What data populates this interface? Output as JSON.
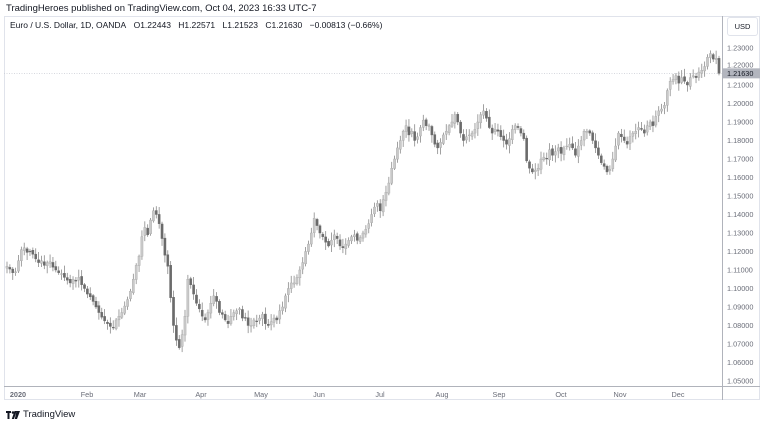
{
  "header": {
    "publish_line": "TradingHeroes published on TradingView.com, Oct 04, 2023 16:33 UTC-7"
  },
  "legend": {
    "symbol": "Euro / U.S. Dollar, 1D, OANDA",
    "open": "O1.22443",
    "high": "H1.22571",
    "low": "L1.21523",
    "close": "C1.21630",
    "change": "−0.00813 (−0.66%)"
  },
  "price_scale": {
    "currency_button": "USD",
    "last_price_label": "1.21630"
  },
  "footer": {
    "brand": "TradingView",
    "logo_icon": "tradingview-logo-icon"
  },
  "colors": {
    "up_candle_fill": "#c9c9c9",
    "up_candle_border": "#a8a8a8",
    "down_candle_fill": "#6b6b6b",
    "wick": "#8a8a8a",
    "last_price_badge": "#b2b5be",
    "grid_border": "#e0e3eb",
    "axis_text": "#6a6d78"
  },
  "chart_data": {
    "type": "candlestick",
    "title": "Euro / U.S. Dollar, 1D, OANDA",
    "xlabel": "",
    "ylabel": "USD",
    "ylim": [
      1.05,
      1.235
    ],
    "grid": false,
    "legend_position": "top-left",
    "y_ticks": [
      "1.23000",
      "1.22000",
      "1.21000",
      "1.20000",
      "1.19000",
      "1.18000",
      "1.17000",
      "1.16000",
      "1.15000",
      "1.14000",
      "1.13000",
      "1.12000",
      "1.11000",
      "1.10000",
      "1.09000",
      "1.08000",
      "1.07000",
      "1.06000",
      "1.05000"
    ],
    "x_ticks": [
      "2020",
      "Feb",
      "Mar",
      "Apr",
      "May",
      "Jun",
      "Jul",
      "Aug",
      "Sep",
      "Oct",
      "Nov",
      "Dec"
    ],
    "last_bar": {
      "open": 1.22443,
      "high": 1.22571,
      "low": 1.21523,
      "close": 1.2163,
      "change": -0.00813,
      "change_pct": -0.66
    },
    "monthly_close_path": [
      {
        "month": "Jan",
        "start": 1.11,
        "high": 1.1235,
        "low": 1.099,
        "end": 1.0985
      },
      {
        "month": "Feb",
        "start": 1.0985,
        "high": 1.105,
        "low": 1.078,
        "end": 1.103
      },
      {
        "month": "Mar",
        "start": 1.103,
        "high": 1.1495,
        "low": 1.0635,
        "end": 1.103
      },
      {
        "month": "Apr",
        "start": 1.103,
        "high": 1.099,
        "low": 1.073,
        "end": 1.087
      },
      {
        "month": "May",
        "start": 1.087,
        "high": 1.114,
        "low": 1.0765,
        "end": 1.1105
      },
      {
        "month": "Jun",
        "start": 1.1105,
        "high": 1.142,
        "low": 1.117,
        "end": 1.1235
      },
      {
        "month": "Jul",
        "start": 1.1235,
        "high": 1.191,
        "low": 1.1185,
        "end": 1.178
      },
      {
        "month": "Aug",
        "start": 1.178,
        "high": 1.201,
        "low": 1.17,
        "end": 1.191
      },
      {
        "month": "Sep",
        "start": 1.191,
        "high": 1.201,
        "low": 1.161,
        "end": 1.172
      },
      {
        "month": "Oct",
        "start": 1.172,
        "high": 1.188,
        "low": 1.162,
        "end": 1.1645
      },
      {
        "month": "Nov",
        "start": 1.1645,
        "high": 1.1965,
        "low": 1.16,
        "end": 1.1925
      },
      {
        "month": "Dec",
        "start": 1.1925,
        "high": 1.2275,
        "low": 1.1925,
        "end": 1.2163
      }
    ],
    "closes": [
      1.112,
      1.1105,
      1.1085,
      1.109,
      1.115,
      1.121,
      1.122,
      1.1195,
      1.12,
      1.1185,
      1.116,
      1.114,
      1.115,
      1.1125,
      1.114,
      1.1145,
      1.1115,
      1.11,
      1.1085,
      1.108,
      1.106,
      1.1045,
      1.103,
      1.105,
      1.104,
      1.106,
      1.102,
      1.1,
      1.097,
      1.0955,
      1.093,
      1.09,
      1.087,
      1.0845,
      1.0825,
      1.081,
      1.0795,
      1.079,
      1.083,
      1.085,
      1.087,
      1.0905,
      1.094,
      1.0985,
      1.105,
      1.1125,
      1.1175,
      1.128,
      1.133,
      1.129,
      1.137,
      1.142,
      1.14,
      1.135,
      1.127,
      1.118,
      1.112,
      1.095,
      1.08,
      1.072,
      1.068,
      1.075,
      1.085,
      1.105,
      1.102,
      1.097,
      1.092,
      1.089,
      1.085,
      1.083,
      1.087,
      1.092,
      1.096,
      1.093,
      1.087,
      1.086,
      1.083,
      1.081,
      1.085,
      1.087,
      1.088,
      1.089,
      1.084,
      1.084,
      1.08,
      1.08,
      1.083,
      1.082,
      1.084,
      1.086,
      1.081,
      1.08,
      1.082,
      1.084,
      1.083,
      1.088,
      1.09,
      1.096,
      1.1,
      1.103,
      1.103,
      1.106,
      1.11,
      1.114,
      1.12,
      1.124,
      1.13,
      1.138,
      1.134,
      1.13,
      1.128,
      1.125,
      1.123,
      1.126,
      1.129,
      1.127,
      1.123,
      1.122,
      1.124,
      1.126,
      1.128,
      1.129,
      1.126,
      1.1275,
      1.13,
      1.132,
      1.135,
      1.14,
      1.144,
      1.146,
      1.142,
      1.148,
      1.152,
      1.157,
      1.165,
      1.17,
      1.176,
      1.18,
      1.185,
      1.188,
      1.183,
      1.185,
      1.18,
      1.182,
      1.187,
      1.191,
      1.188,
      1.188,
      1.183,
      1.178,
      1.176,
      1.179,
      1.183,
      1.185,
      1.188,
      1.19,
      1.194,
      1.19,
      1.184,
      1.18,
      1.182,
      1.183,
      1.184,
      1.186,
      1.19,
      1.194,
      1.196,
      1.192,
      1.187,
      1.184,
      1.186,
      1.185,
      1.182,
      1.18,
      1.178,
      1.181,
      1.186,
      1.188,
      1.187,
      1.184,
      1.181,
      1.169,
      1.165,
      1.163,
      1.164,
      1.165,
      1.17,
      1.171,
      1.17,
      1.175,
      1.172,
      1.174,
      1.176,
      1.173,
      1.176,
      1.177,
      1.178,
      1.176,
      1.172,
      1.177,
      1.18,
      1.185,
      1.185,
      1.184,
      1.18,
      1.176,
      1.172,
      1.168,
      1.166,
      1.163,
      1.1645,
      1.17,
      1.177,
      1.184,
      1.182,
      1.18,
      1.178,
      1.182,
      1.184,
      1.185,
      1.187,
      1.186,
      1.184,
      1.188,
      1.19,
      1.188,
      1.193,
      1.196,
      1.197,
      1.199,
      1.207,
      1.212,
      1.213,
      1.215,
      1.211,
      1.214,
      1.212,
      1.21,
      1.214,
      1.215,
      1.214,
      1.217,
      1.218,
      1.22,
      1.225,
      1.227,
      1.224,
      1.2244,
      1.2163
    ]
  }
}
